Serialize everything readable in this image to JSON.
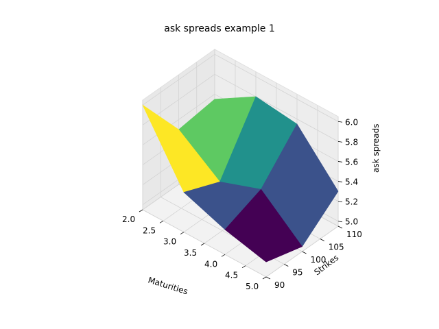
{
  "chart_data": {
    "type": "surface3d",
    "title": "ask spreads example 1",
    "xlabel": "Maturities",
    "ylabel": "Strikes",
    "zlabel": "ask spreads",
    "x_ticks": [
      "2.0",
      "2.5",
      "3.0",
      "3.5",
      "4.0",
      "4.5",
      "5.0"
    ],
    "y_ticks": [
      "90",
      "95",
      "100",
      "105",
      "110"
    ],
    "z_ticks": [
      "5.0",
      "5.2",
      "5.4",
      "5.6",
      "5.8",
      "6.0"
    ],
    "xlim": [
      2.0,
      5.0
    ],
    "ylim": [
      90,
      110
    ],
    "zlim": [
      4.95,
      6.05
    ],
    "colormap": "viridis",
    "maturities": [
      2,
      3,
      4,
      5
    ],
    "strikes": [
      90,
      100,
      110
    ],
    "ask_spreads": [
      [
        6.0,
        5.5,
        5.55
      ],
      [
        5.35,
        5.2,
        5.8
      ],
      [
        5.2,
        5.35,
        5.75
      ],
      [
        5.1,
        5.0,
        5.3
      ]
    ],
    "cell_colors": [
      [
        "#fde725",
        "#5ec962"
      ],
      [
        "#3b528b",
        "#21918c"
      ],
      [
        "#440154",
        "#3b528b"
      ]
    ]
  }
}
